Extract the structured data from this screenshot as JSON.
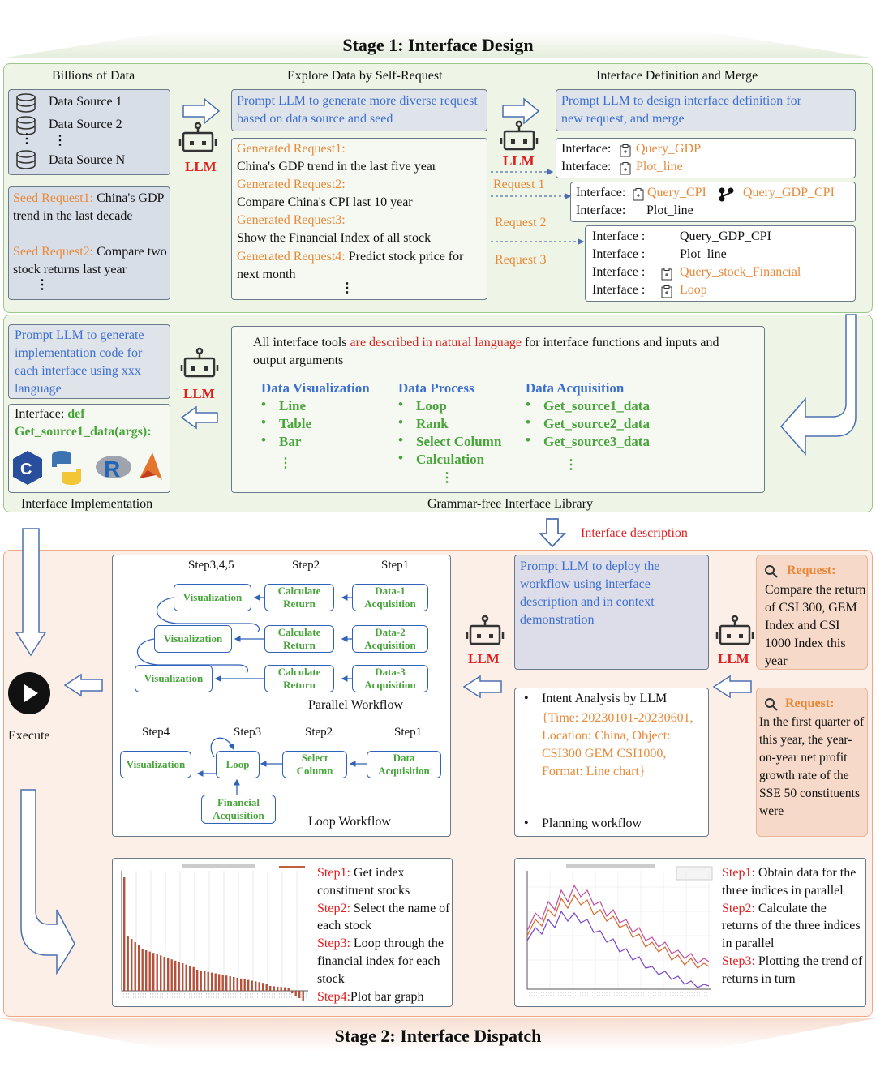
{
  "stage1": {
    "title": "Stage 1: Interface Design",
    "headers": {
      "billions": "Billions of Data",
      "explore": "Explore Data by Self-Request",
      "definition": "Interface Definition and Merge"
    },
    "data_sources": [
      "Data Source 1",
      "Data Source 2",
      "⋮",
      "Data Source N"
    ],
    "seeds": {
      "seed1_label": "Seed Request1:",
      "seed1_text": " China's GDP trend in the last decade",
      "seed2_label": "Seed Request2:",
      "seed2_text": " Compare two stock returns last year",
      "dots": "⋮"
    },
    "llm": "LLM",
    "prompt_explore": "Prompt LLM to generate more diverse request based on data source and seed",
    "generated": [
      {
        "label": "Generated Request1:",
        "text": "China's GDP trend in the last five year"
      },
      {
        "label": "Generated Request2:",
        "text": "Compare China's CPI last 10 year"
      },
      {
        "label": "Generated Request3:",
        "text": "Show the Financial Index of all stock"
      },
      {
        "label": "Generated Request4:",
        "text": " Predict stock price for next month"
      }
    ],
    "gen_dots": "⋮",
    "prompt_define": "Prompt LLM to design interface definition for new request, and merge",
    "req_labels": [
      "Request 1",
      "Request 2",
      "Request 3"
    ],
    "if1": {
      "l1": "Interface:",
      "v1": "Query_GDP",
      "l2": "Interface:",
      "v2": "Plot_line"
    },
    "if2": {
      "l1": "Interface:",
      "v1": "Query_CPI",
      "v1b": "Query_GDP_CPI",
      "l2": "Interface:",
      "v2": "Plot_line"
    },
    "if3": {
      "rows": [
        {
          "l": "Interface :",
          "v": "Query_GDP_CPI",
          "hl": false
        },
        {
          "l": "Interface :",
          "v": "Plot_line",
          "hl": false
        },
        {
          "l": "Interface :",
          "v": "Query_stock_Financial",
          "hl": true
        },
        {
          "l": "Interface :",
          "v": "Loop",
          "hl": true
        }
      ]
    },
    "prompt_impl": "Prompt LLM to generate implementation code for each interface using xxx language",
    "impl_code": {
      "label": "Interface:",
      "kw": " def",
      "fn": "Get_source1_data(args):"
    },
    "impl_caption": "Interface Implementation",
    "library": {
      "desc_pre": "All interface tools ",
      "desc_red": "are described in natural language",
      "desc_post": " for interface functions and inputs and output arguments",
      "cols": [
        {
          "title": "Data Visualization",
          "items": [
            "Line",
            "Table",
            "Bar"
          ]
        },
        {
          "title": "Data Process",
          "items": [
            "Loop",
            "Rank",
            "Select Column",
            "Calculation"
          ]
        },
        {
          "title": "Data Acquisition",
          "items": [
            "Get_source1_data",
            "Get_source2_data",
            "Get_source3_data"
          ]
        }
      ],
      "caption": "Grammar-free Interface Library"
    },
    "interface_description": "Interface description"
  },
  "stage2": {
    "title": "Stage 2: Interface Dispatch",
    "execute": "Execute",
    "steps_top": {
      "s345": "Step3,4,5",
      "s2": "Step2",
      "s1": "Step1"
    },
    "parallel_nodes": {
      "viz": "Visualization",
      "calc": "Calculate Return",
      "d1": "Data-1 Acquisition",
      "d2": "Data-2 Acquisition",
      "d3": "Data-3 Acquisition"
    },
    "parallel_caption": "Parallel Workflow",
    "steps_loop": {
      "s4": "Step4",
      "s3": "Step3",
      "s2": "Step2",
      "s1": "Step1"
    },
    "loop_nodes": {
      "viz": "Visualization",
      "loop": "Loop",
      "select": "Select Column",
      "data": "Data Acquisition",
      "fin": "Financial Acquisition"
    },
    "loop_caption": "Loop Workflow",
    "prompt_deploy": "Prompt LLM to deploy the workflow using interface description and in context demonstration",
    "intent": {
      "title": "Intent Analysis by LLM",
      "detail": "{Time: 20230101-20230601, Location: China, Object: CSI300 GEM CSI1000, Format: Line chart}",
      "planning": "Planning workflow"
    },
    "request1": {
      "label": "Request:",
      "text": "Compare the return of CSI 300, GEM Index and CSI 1000 Index this year"
    },
    "request2": {
      "label": "Request:",
      "text": "In the first quarter of this year, the year-on-year net profit growth rate of the SSE 50 constituents were"
    },
    "left_steps": [
      {
        "label": "Step1:",
        "text": " Get index constituent stocks"
      },
      {
        "label": "Step2:",
        "text": " Select the name of each stock"
      },
      {
        "label": "Step3:",
        "text": " Loop through the financial index for each stock"
      },
      {
        "label": "Step4:",
        "text": "Plot bar graph"
      }
    ],
    "right_steps": [
      {
        "label": "Step1:",
        "text": " Obtain data for the three indices in parallel"
      },
      {
        "label": "Step2:",
        "text": " Calculate the returns of the three indices in parallel"
      },
      {
        "label": "Step3:",
        "text": " Plotting the trend of returns in turn"
      }
    ]
  },
  "colors": {
    "green_panel": "#eef5e6",
    "pink_panel": "#fcefe8",
    "blue_text": "#3d6fd0",
    "orange_text": "#e8893a",
    "green_text": "#49a43c",
    "red_text": "#e02020"
  }
}
